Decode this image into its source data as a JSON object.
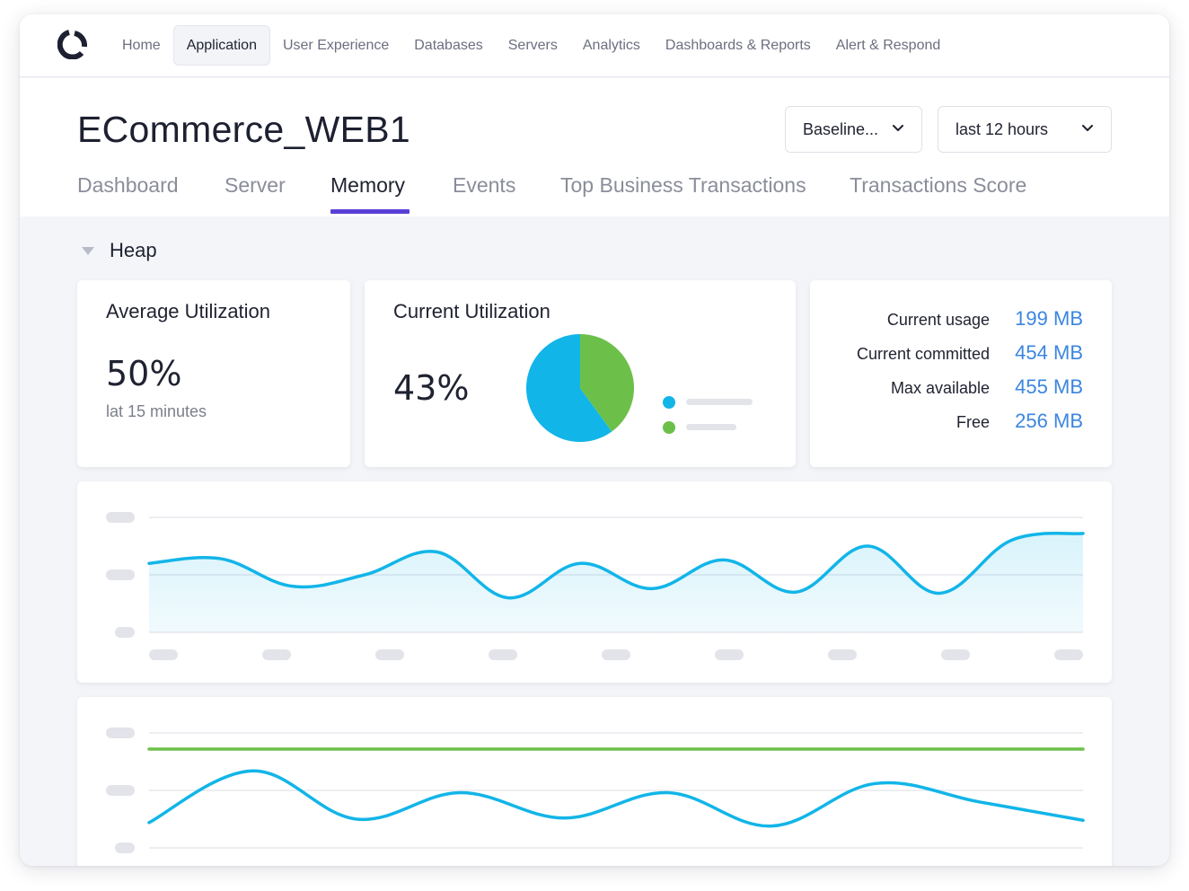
{
  "nav": {
    "items": [
      {
        "label": "Home",
        "active": false
      },
      {
        "label": "Application",
        "active": true
      },
      {
        "label": "User Experience",
        "active": false
      },
      {
        "label": "Databases",
        "active": false
      },
      {
        "label": "Servers",
        "active": false
      },
      {
        "label": "Analytics",
        "active": false
      },
      {
        "label": "Dashboards & Reports",
        "active": false
      },
      {
        "label": "Alert & Respond",
        "active": false
      }
    ]
  },
  "page": {
    "title": "ECommerce_WEB1"
  },
  "filters": {
    "baseline_label": "Baseline...",
    "timerange_label": "last 12 hours"
  },
  "tabs": [
    {
      "label": "Dashboard",
      "active": false
    },
    {
      "label": "Server",
      "active": false
    },
    {
      "label": "Memory",
      "active": true
    },
    {
      "label": "Events",
      "active": false
    },
    {
      "label": "Top Business Transactions",
      "active": false
    },
    {
      "label": "Transactions Score",
      "active": false
    }
  ],
  "heap": {
    "section_title": "Heap",
    "average": {
      "title": "Average Utilization",
      "value": "50%",
      "caption": "lat 15 minutes"
    },
    "current": {
      "title": "Current Utilization",
      "value": "43%"
    },
    "stats": [
      {
        "label": "Current usage",
        "value": "199 MB"
      },
      {
        "label": "Current committed",
        "value": "454 MB"
      },
      {
        "label": "Max available",
        "value": "455 MB"
      },
      {
        "label": "Free",
        "value": "256 MB"
      }
    ]
  },
  "colors": {
    "accent": "#5a3fd6",
    "series_blue": "#12b5e8",
    "series_green": "#6cc04a",
    "stat_value": "#3b86e0",
    "placeholder": "#e3e4ea"
  },
  "chart_data": [
    {
      "type": "pie",
      "slices": [
        {
          "value": 60,
          "color": "#12b5e8"
        },
        {
          "value": 40,
          "color": "#6cc04a"
        }
      ]
    },
    {
      "type": "area",
      "ylim": [
        0,
        100
      ],
      "series": [
        {
          "color": "#12b5e8",
          "values": [
            60,
            64,
            40,
            50,
            70,
            30,
            60,
            38,
            63,
            35,
            75,
            34,
            80,
            86
          ]
        }
      ],
      "grid": true
    },
    {
      "type": "line",
      "ylim": [
        0,
        100
      ],
      "series": [
        {
          "color": "#6cc04a",
          "values": [
            100,
            100,
            100,
            100,
            100,
            100,
            100,
            100,
            100,
            100,
            100,
            100,
            100,
            100
          ]
        },
        {
          "color": "#12b5e8",
          "values": [
            22,
            67,
            25,
            48,
            26,
            48,
            19,
            56,
            40,
            24
          ]
        }
      ],
      "grid": true
    }
  ]
}
